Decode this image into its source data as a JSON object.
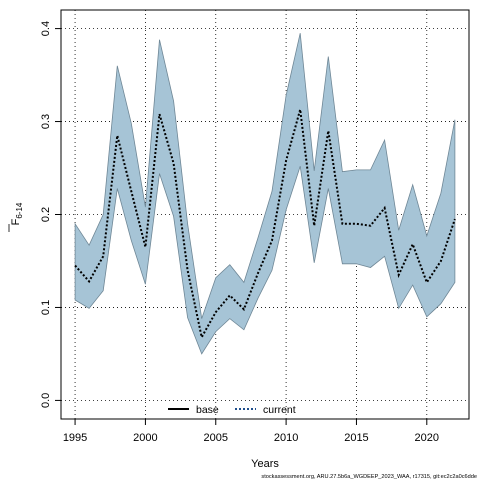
{
  "chart_data": {
    "type": "line",
    "xlabel": "Years",
    "ylabel_main": "F",
    "ylabel_sub": "6-14",
    "xlim": [
      1994,
      2023
    ],
    "ylim": [
      -0.02,
      0.42
    ],
    "xticks": [
      1995,
      2000,
      2005,
      2010,
      2015,
      2020
    ],
    "yticks": [
      0.0,
      0.1,
      0.2,
      0.3,
      0.4
    ],
    "ytick_labels": [
      "0.0",
      "0.1",
      "0.2",
      "0.3",
      "0.4"
    ],
    "grid": true,
    "x": [
      1995,
      1996,
      1997,
      1998,
      1999,
      2000,
      2001,
      2002,
      2003,
      2004,
      2005,
      2006,
      2007,
      2008,
      2009,
      2010,
      2011,
      2012,
      2013,
      2014,
      2015,
      2016,
      2017,
      2018,
      2019,
      2020,
      2021,
      2022
    ],
    "series": [
      {
        "name": "current",
        "style": "dotted",
        "color": "#000000",
        "values": [
          0.145,
          0.128,
          0.155,
          0.285,
          0.225,
          0.165,
          0.308,
          0.255,
          0.14,
          0.068,
          0.095,
          0.113,
          0.098,
          0.137,
          0.172,
          0.258,
          0.313,
          0.188,
          0.29,
          0.19,
          0.19,
          0.188,
          0.207,
          0.135,
          0.168,
          0.127,
          0.15,
          0.195
        ],
        "lower": [
          0.108,
          0.099,
          0.118,
          0.228,
          0.172,
          0.125,
          0.244,
          0.198,
          0.089,
          0.05,
          0.074,
          0.088,
          0.076,
          0.11,
          0.14,
          0.205,
          0.252,
          0.148,
          0.228,
          0.147,
          0.147,
          0.143,
          0.155,
          0.099,
          0.124,
          0.09,
          0.104,
          0.127
        ],
        "upper": [
          0.19,
          0.167,
          0.2,
          0.36,
          0.298,
          0.208,
          0.388,
          0.322,
          0.19,
          0.088,
          0.132,
          0.146,
          0.127,
          0.175,
          0.225,
          0.328,
          0.395,
          0.247,
          0.37,
          0.246,
          0.248,
          0.248,
          0.28,
          0.183,
          0.232,
          0.177,
          0.223,
          0.302
        ]
      }
    ],
    "band_color": "#a6c4d6",
    "legend": {
      "placement": "bottom-center",
      "entries": [
        {
          "label": "base",
          "style": "solid"
        },
        {
          "label": "current",
          "style": "dotted",
          "color": "#1f4e8c"
        }
      ]
    }
  },
  "footer": "stockassessment.org, ARU.27.5b6a_WGDEEP_2023_WAA, r17315, git:ec2c2a0c6dde"
}
